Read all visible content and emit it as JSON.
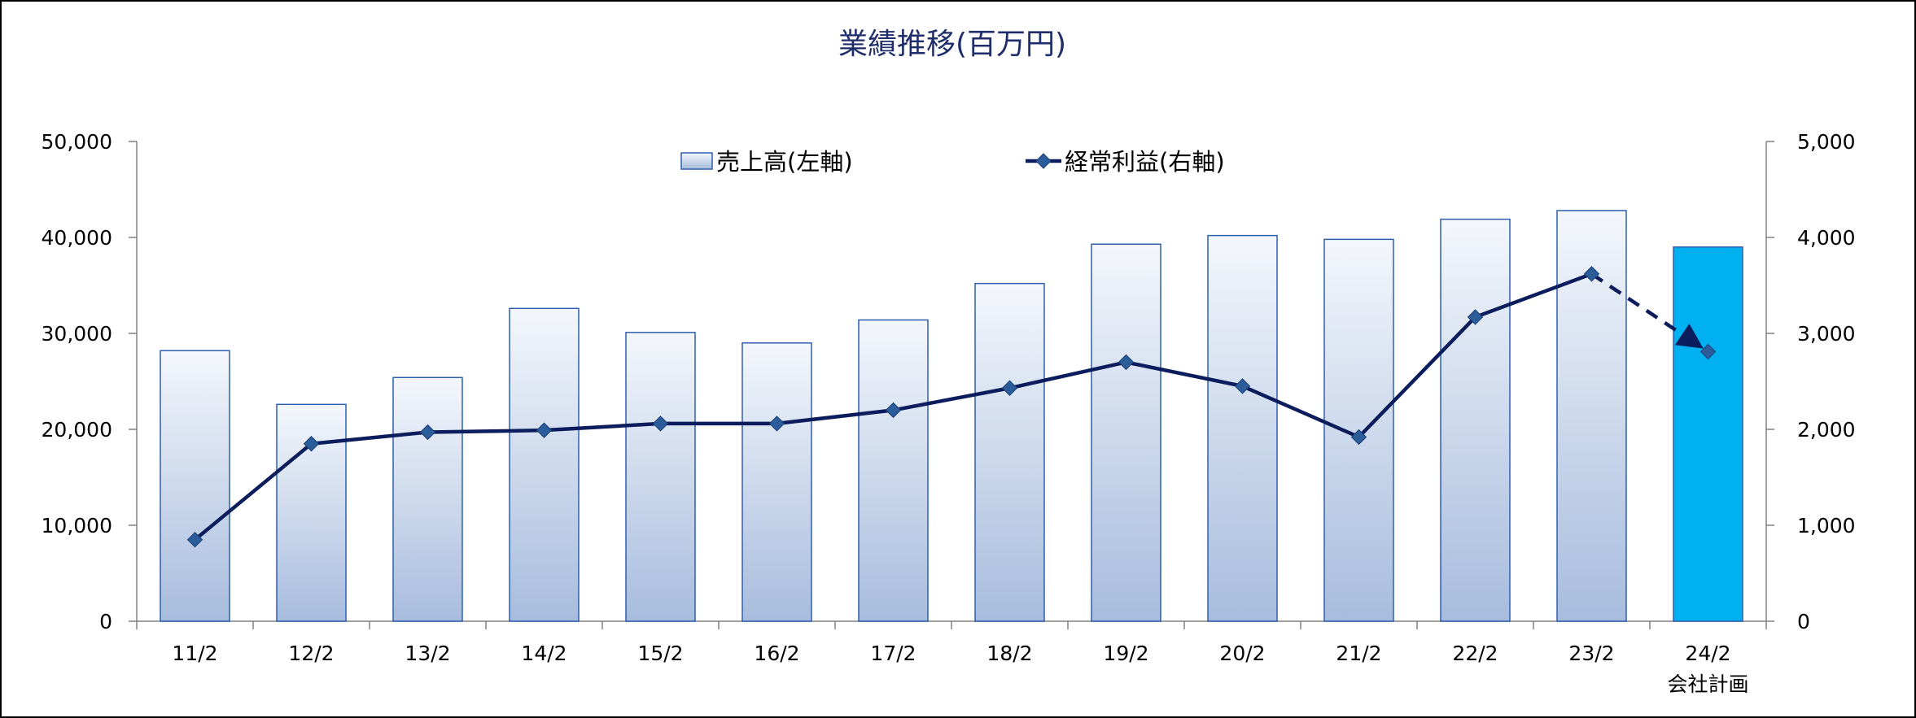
{
  "chart_data": {
    "type": "bar",
    "title": "業績推移(百万円)",
    "categories": [
      "11/2",
      "12/2",
      "13/2",
      "14/2",
      "15/2",
      "16/2",
      "17/2",
      "18/2",
      "19/2",
      "20/2",
      "21/2",
      "22/2",
      "23/2",
      "24/2"
    ],
    "category_sublabels": [
      "",
      "",
      "",
      "",
      "",
      "",
      "",
      "",
      "",
      "",
      "",
      "",
      "",
      "会社計画"
    ],
    "series": [
      {
        "name": "売上高(左軸)",
        "type": "bar",
        "axis": "left",
        "values": [
          28200,
          22600,
          25400,
          32600,
          30100,
          29000,
          31400,
          35200,
          39300,
          40200,
          39800,
          41900,
          42800,
          39000
        ],
        "highlight_index": 13,
        "gradient_colors": [
          "#f4f7fc",
          "#a7bcdd"
        ],
        "border_color": "#2e5fb0",
        "highlight_color": "#00b0f0"
      },
      {
        "name": "経常利益(右軸)",
        "type": "line",
        "axis": "right",
        "values": [
          850,
          1850,
          1970,
          1990,
          2060,
          2060,
          2200,
          2430,
          2700,
          2450,
          1920,
          3170,
          3620,
          2810
        ],
        "forecast_from_index": 12,
        "line_color": "#0b1d5c",
        "marker_color": "#2a5d9a"
      }
    ],
    "y_left": {
      "min": 0,
      "max": 50000,
      "ticks": [
        "0",
        "10,000",
        "20,000",
        "30,000",
        "40,000",
        "50,000"
      ]
    },
    "y_right": {
      "min": 0,
      "max": 5000,
      "ticks": [
        "0",
        "1,000",
        "2,000",
        "3,000",
        "4,000",
        "5,000"
      ]
    },
    "legend_position": "top-center",
    "grid": false
  }
}
